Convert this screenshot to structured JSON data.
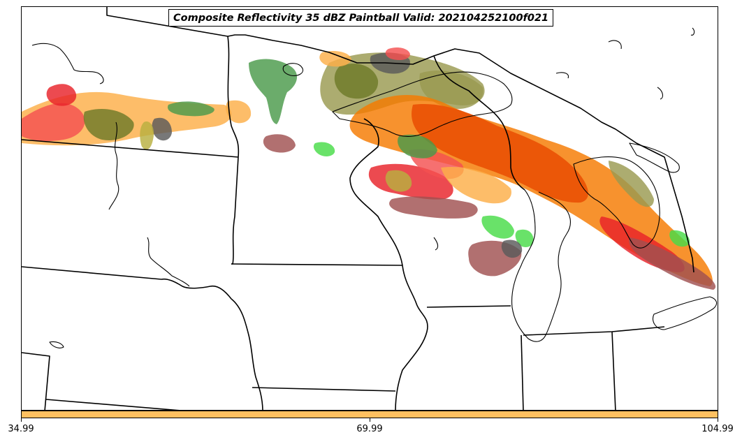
{
  "title": "Composite Reflectivity 35 dBZ Paintball Valid: 202104252100f021",
  "colorbar": {
    "color": "#ffc060",
    "ticks": [
      "34.99",
      "69.99",
      "104.99"
    ]
  },
  "map": {
    "land_fill": "#ffffff",
    "border_color": "#000000",
    "paint_colors": {
      "orange": "#f57a00",
      "red_orange": "#e84a00",
      "red": "#e8222a",
      "light_red": "#f45050",
      "light_orange": "#fcae48",
      "maroon": "#a05050",
      "olive": "#9a9a50",
      "dark_olive": "#6e7a28",
      "green": "#4a9a4a",
      "bright_green": "#48dc48",
      "gray": "#5a5a5a",
      "yellow_olive": "#b8b040"
    }
  }
}
